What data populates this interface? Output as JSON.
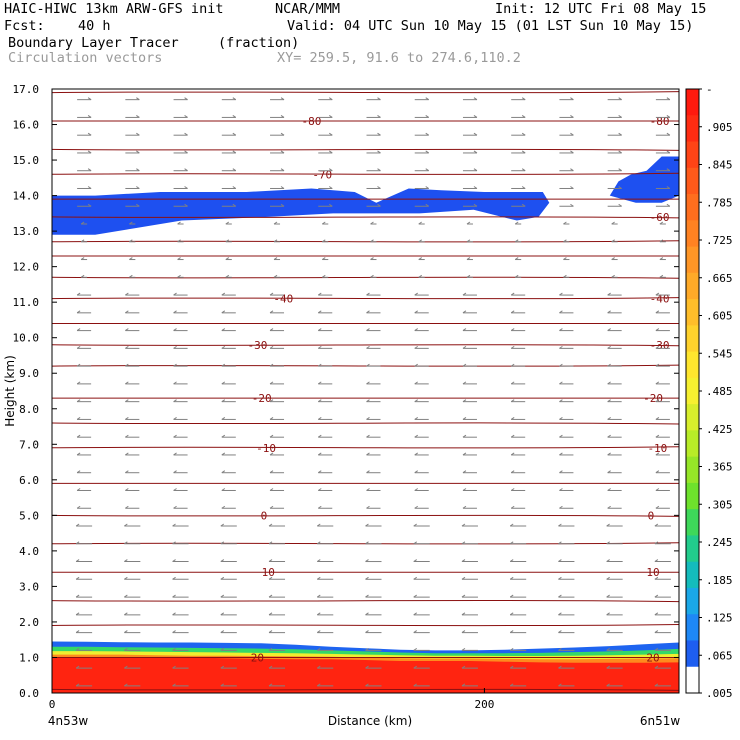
{
  "header": {
    "model": "HAIC-HIWC 13km ARW-GFS init",
    "org": "NCAR/MMM",
    "init": "Init: 12 UTC Fri 08 May 15",
    "fcst_label": "Fcst:",
    "fcst_value": "40 h",
    "valid": "Valid: 04 UTC Sun 10 May 15 (01 LST Sun 10 May 15)",
    "field": "Boundary Layer Tracer",
    "units": "(fraction)",
    "vectors": "Circulation vectors",
    "xy": "XY= 259.5, 91.6 to 274.6,110.2"
  },
  "chart_data": {
    "type": "heatmap",
    "xlabel": "Distance (km)",
    "ylabel": "Height (km)",
    "xlim": [
      0,
      290
    ],
    "ylim": [
      0,
      17
    ],
    "x_ticks": [
      {
        "v": 0,
        "label": "0"
      },
      {
        "v": 200,
        "label": "200"
      }
    ],
    "x_end_labels": {
      "left": "4n53w",
      "right": "6n51w"
    },
    "y_ticks": [
      "0.0",
      "1.0",
      "2.0",
      "3.0",
      "4.0",
      "5.0",
      "6.0",
      "7.0",
      "8.0",
      "9.0",
      "10.0",
      "11.0",
      "12.0",
      "13.0",
      "14.0",
      "15.0",
      "16.0",
      "17.0"
    ],
    "colorbar": {
      "labels": [
        "-",
        ".905",
        ".845",
        ".785",
        ".725",
        ".665",
        ".605",
        ".545",
        ".485",
        ".425",
        ".365",
        ".305",
        ".245",
        ".185",
        ".125",
        ".065",
        ".005"
      ],
      "colors": [
        "#ff1a0e",
        "#ff2c12",
        "#ff4416",
        "#ff5a1a",
        "#ff6e1e",
        "#ff8222",
        "#ff9626",
        "#ffaa28",
        "#ffbe2a",
        "#ffd22c",
        "#ffe62e",
        "#f6f030",
        "#d8ee2c",
        "#b8ec28",
        "#96e628",
        "#6ee22c",
        "#3ed85a",
        "#22cc8c",
        "#14bcbc",
        "#1aa8e8",
        "#1e88f6",
        "#1e5ef0",
        "#ffffff"
      ]
    },
    "tracer_layers": [
      {
        "name": "bl-red",
        "color": "#ff2410",
        "top": [
          1.0,
          1.0,
          1.0,
          1.0,
          1.0,
          0.98,
          0.96,
          0.95,
          0.95,
          0.93,
          0.9,
          0.9,
          0.9,
          0.88,
          0.86,
          0.85,
          0.85,
          0.85,
          0.86
        ]
      },
      {
        "name": "bl-orange",
        "color": "#ff8a1e",
        "top": [
          1.08,
          1.08,
          1.08,
          1.06,
          1.05,
          1.05,
          1.04,
          1.03,
          1.02,
          1.0,
          0.98,
          0.97,
          0.97,
          0.96,
          0.95,
          0.95,
          0.96,
          0.97,
          0.98
        ]
      },
      {
        "name": "bl-yellow",
        "color": "#f0ee30",
        "top": [
          1.18,
          1.18,
          1.17,
          1.16,
          1.15,
          1.14,
          1.13,
          1.12,
          1.1,
          1.08,
          1.06,
          1.05,
          1.05,
          1.04,
          1.04,
          1.05,
          1.06,
          1.08,
          1.1
        ]
      },
      {
        "name": "bl-green",
        "color": "#34d868",
        "top": [
          1.3,
          1.3,
          1.29,
          1.28,
          1.27,
          1.26,
          1.25,
          1.23,
          1.2,
          1.17,
          1.14,
          1.12,
          1.12,
          1.12,
          1.13,
          1.15,
          1.17,
          1.2,
          1.24
        ]
      },
      {
        "name": "bl-blue",
        "color": "#1e64f0",
        "top": [
          1.45,
          1.44,
          1.43,
          1.42,
          1.42,
          1.41,
          1.4,
          1.36,
          1.3,
          1.26,
          1.22,
          1.2,
          1.2,
          1.22,
          1.25,
          1.28,
          1.32,
          1.37,
          1.42
        ]
      }
    ],
    "upper_blobs": [
      {
        "name": "upper-blob-left",
        "color": "#1e50f0",
        "points": [
          [
            0,
            12.9
          ],
          [
            20,
            12.9
          ],
          [
            40,
            13.1
          ],
          [
            60,
            13.3
          ],
          [
            100,
            13.4
          ],
          [
            130,
            13.5
          ],
          [
            170,
            13.5
          ],
          [
            195,
            13.6
          ],
          [
            215,
            13.3
          ],
          [
            225,
            13.4
          ],
          [
            230,
            13.8
          ],
          [
            227,
            14.1
          ],
          [
            200,
            14.1
          ],
          [
            180,
            14.15
          ],
          [
            165,
            14.2
          ],
          [
            150,
            13.8
          ],
          [
            140,
            14.1
          ],
          [
            120,
            14.2
          ],
          [
            90,
            14.1
          ],
          [
            50,
            14.1
          ],
          [
            20,
            14.0
          ],
          [
            0,
            14.0
          ]
        ]
      },
      {
        "name": "upper-blob-right",
        "color": "#1e50f0",
        "points": [
          [
            258,
            14.0
          ],
          [
            270,
            13.8
          ],
          [
            282,
            13.8
          ],
          [
            290,
            14.0
          ],
          [
            290,
            15.1
          ],
          [
            282,
            15.1
          ],
          [
            275,
            14.7
          ],
          [
            268,
            14.6
          ],
          [
            262,
            14.4
          ]
        ]
      }
    ],
    "isotherms": [
      {
        "h": 16.9,
        "label": "",
        "lx": null
      },
      {
        "h": 16.1,
        "label": "-80",
        "lx": 120
      },
      {
        "h": 15.3,
        "label": "",
        "lx": null
      },
      {
        "h": 14.6,
        "label": "-70",
        "lx": 125
      },
      {
        "h": 13.9,
        "label": "",
        "lx": null
      },
      {
        "h": 13.4,
        "label": "-60",
        "lx": 281
      },
      {
        "h": 12.7,
        "label": "",
        "lx": null
      },
      {
        "h": 12.3,
        "label": "",
        "lx": null
      },
      {
        "h": 11.7,
        "label": "",
        "lx": null
      },
      {
        "h": 11.1,
        "label": "-40",
        "lx": 107
      },
      {
        "h": 10.4,
        "label": "",
        "lx": null
      },
      {
        "h": 9.8,
        "label": "-30",
        "lx": 95
      },
      {
        "h": 9.2,
        "label": "",
        "lx": null
      },
      {
        "h": 8.3,
        "label": "-20",
        "lx": 97
      },
      {
        "h": 7.6,
        "label": "",
        "lx": null
      },
      {
        "h": 6.9,
        "label": "-10",
        "lx": 99
      },
      {
        "h": 5.9,
        "label": "",
        "lx": null
      },
      {
        "h": 5.0,
        "label": "0",
        "lx": 98
      },
      {
        "h": 4.2,
        "label": "",
        "lx": null
      },
      {
        "h": 3.4,
        "label": "10",
        "lx": 100
      },
      {
        "h": 2.6,
        "label": "",
        "lx": null
      },
      {
        "h": 1.9,
        "label": "",
        "lx": null
      },
      {
        "h": 1.0,
        "label": "20",
        "lx": 95
      },
      {
        "h": 0.1,
        "label": "",
        "lx": null
      }
    ],
    "isotherm_labels_right": [
      {
        "h": 16.1,
        "label": "-80",
        "x": 281
      },
      {
        "h": 11.1,
        "label": "-40",
        "x": 281
      },
      {
        "h": 9.8,
        "label": "-30",
        "x": 281
      },
      {
        "h": 8.3,
        "label": "-20",
        "x": 278
      },
      {
        "h": 6.9,
        "label": "-10",
        "x": 280
      },
      {
        "h": 5.0,
        "label": "0",
        "x": 277
      },
      {
        "h": 3.4,
        "label": "10",
        "x": 278
      },
      {
        "h": 1.0,
        "label": "20",
        "x": 278
      }
    ],
    "vector_field": {
      "x_count": 13,
      "y_step": 0.25,
      "description_bands": [
        {
          "from": 13.5,
          "to": 17.0,
          "dir": "east"
        },
        {
          "from": 11.5,
          "to": 13.5,
          "dir": "west-weak"
        },
        {
          "from": 0.1,
          "to": 11.5,
          "dir": "west"
        }
      ]
    }
  }
}
